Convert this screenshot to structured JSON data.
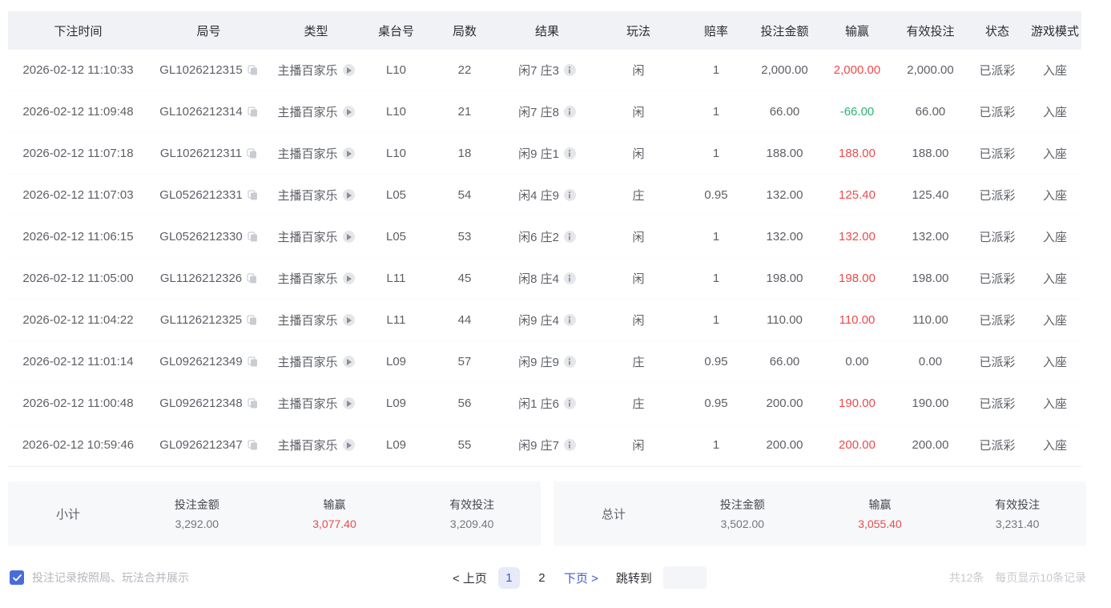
{
  "colors": {
    "win_red": "#ed4a4a",
    "loss_green": "#2ab573",
    "accent_blue": "#4257c8",
    "checkbox_blue": "#4a6bdc",
    "header_bg": "#f1f2f6",
    "panel_bg": "#f7f8fa"
  },
  "table": {
    "headers": [
      "下注时间",
      "局号",
      "类型",
      "桌台号",
      "局数",
      "结果",
      "玩法",
      "赔率",
      "投注金额",
      "输赢",
      "有效投注",
      "状态",
      "游戏模式"
    ],
    "rows": [
      {
        "time": "2026-02-12 11:10:33",
        "round_id": "GL1026212315",
        "type": "主播百家乐",
        "table_no": "L10",
        "rounds": "22",
        "result": "闲7 庄3",
        "play": "闲",
        "odds": "1",
        "bet": "2,000.00",
        "win": "2,000.00",
        "win_color": "red",
        "valid": "2,000.00",
        "status": "已派彩",
        "mode": "入座"
      },
      {
        "time": "2026-02-12 11:09:48",
        "round_id": "GL1026212314",
        "type": "主播百家乐",
        "table_no": "L10",
        "rounds": "21",
        "result": "闲7 庄8",
        "play": "闲",
        "odds": "1",
        "bet": "66.00",
        "win": "-66.00",
        "win_color": "green",
        "valid": "66.00",
        "status": "已派彩",
        "mode": "入座"
      },
      {
        "time": "2026-02-12 11:07:18",
        "round_id": "GL1026212311",
        "type": "主播百家乐",
        "table_no": "L10",
        "rounds": "18",
        "result": "闲9 庄1",
        "play": "闲",
        "odds": "1",
        "bet": "188.00",
        "win": "188.00",
        "win_color": "red",
        "valid": "188.00",
        "status": "已派彩",
        "mode": "入座"
      },
      {
        "time": "2026-02-12 11:07:03",
        "round_id": "GL0526212331",
        "type": "主播百家乐",
        "table_no": "L05",
        "rounds": "54",
        "result": "闲4 庄9",
        "play": "庄",
        "odds": "0.95",
        "bet": "132.00",
        "win": "125.40",
        "win_color": "red",
        "valid": "125.40",
        "status": "已派彩",
        "mode": "入座"
      },
      {
        "time": "2026-02-12 11:06:15",
        "round_id": "GL0526212330",
        "type": "主播百家乐",
        "table_no": "L05",
        "rounds": "53",
        "result": "闲6 庄2",
        "play": "闲",
        "odds": "1",
        "bet": "132.00",
        "win": "132.00",
        "win_color": "red",
        "valid": "132.00",
        "status": "已派彩",
        "mode": "入座"
      },
      {
        "time": "2026-02-12 11:05:00",
        "round_id": "GL1126212326",
        "type": "主播百家乐",
        "table_no": "L11",
        "rounds": "45",
        "result": "闲8 庄4",
        "play": "闲",
        "odds": "1",
        "bet": "198.00",
        "win": "198.00",
        "win_color": "red",
        "valid": "198.00",
        "status": "已派彩",
        "mode": "入座"
      },
      {
        "time": "2026-02-12 11:04:22",
        "round_id": "GL1126212325",
        "type": "主播百家乐",
        "table_no": "L11",
        "rounds": "44",
        "result": "闲9 庄4",
        "play": "闲",
        "odds": "1",
        "bet": "110.00",
        "win": "110.00",
        "win_color": "red",
        "valid": "110.00",
        "status": "已派彩",
        "mode": "入座"
      },
      {
        "time": "2026-02-12 11:01:14",
        "round_id": "GL0926212349",
        "type": "主播百家乐",
        "table_no": "L09",
        "rounds": "57",
        "result": "闲9 庄9",
        "play": "庄",
        "odds": "0.95",
        "bet": "66.00",
        "win": "0.00",
        "win_color": "neutral",
        "valid": "0.00",
        "status": "已派彩",
        "mode": "入座"
      },
      {
        "time": "2026-02-12 11:00:48",
        "round_id": "GL0926212348",
        "type": "主播百家乐",
        "table_no": "L09",
        "rounds": "56",
        "result": "闲1 庄6",
        "play": "庄",
        "odds": "0.95",
        "bet": "200.00",
        "win": "190.00",
        "win_color": "red",
        "valid": "190.00",
        "status": "已派彩",
        "mode": "入座"
      },
      {
        "time": "2026-02-12 10:59:46",
        "round_id": "GL0926212347",
        "type": "主播百家乐",
        "table_no": "L09",
        "rounds": "55",
        "result": "闲9 庄7",
        "play": "闲",
        "odds": "1",
        "bet": "200.00",
        "win": "200.00",
        "win_color": "red",
        "valid": "200.00",
        "status": "已派彩",
        "mode": "入座"
      }
    ]
  },
  "subtotal": {
    "label": "小计",
    "bet_label": "投注金额",
    "bet": "3,292.00",
    "win_label": "输赢",
    "win": "3,077.40",
    "valid_label": "有效投注",
    "valid": "3,209.40"
  },
  "total": {
    "label": "总计",
    "bet_label": "投注金额",
    "bet": "3,502.00",
    "win_label": "输赢",
    "win": "3,055.40",
    "valid_label": "有效投注",
    "valid": "3,231.40"
  },
  "footer": {
    "merge_label": "投注记录按照局、玩法合并展示",
    "pagination": {
      "prev": "< 上页",
      "page1": "1",
      "page2": "2",
      "next": "下页 >",
      "jump_label": "跳转到"
    },
    "total_records": "共12条",
    "page_size": "每页显示10条记录"
  }
}
